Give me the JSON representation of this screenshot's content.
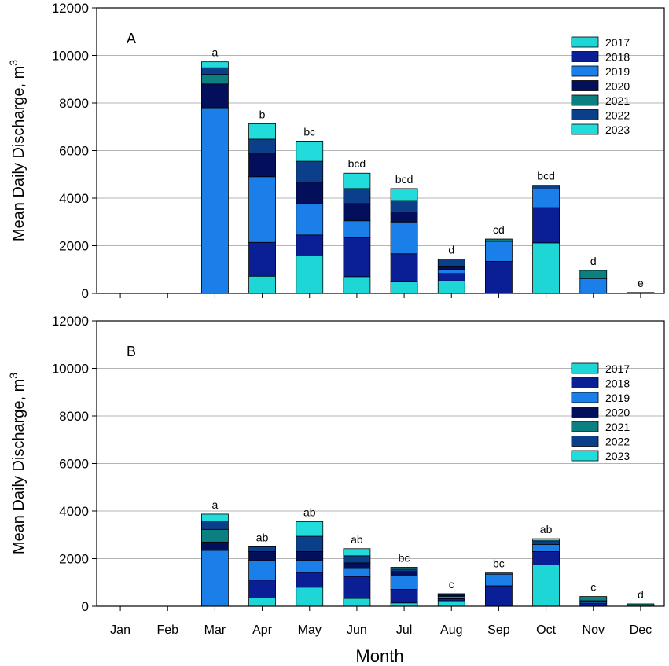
{
  "colors": {
    "2017": "#1ed6d6",
    "2018": "#0a1f96",
    "2019": "#1a7fe8",
    "2020": "#040f5c",
    "2021": "#0c7f80",
    "2022": "#0c3f8a",
    "2023": "#22dcdc",
    "grid": "#b4b4b4",
    "axis": "#000000"
  },
  "xlabel": "Month",
  "chart_data": [
    {
      "type": "bar",
      "stacked": true,
      "panel_label": "A",
      "title": "",
      "ylabel": "Mean Daily Discharge, m",
      "ylabel_sup": "3",
      "ylim": [
        0,
        12000
      ],
      "yticks": [
        "0",
        "2000",
        "4000",
        "6000",
        "8000",
        "10000",
        "12000"
      ],
      "grid": true,
      "legend_position": "top-right",
      "categories": [
        "Jan",
        "Feb",
        "Mar",
        "Apr",
        "May",
        "Jun",
        "Jul",
        "Aug",
        "Sep",
        "Oct",
        "Nov",
        "Dec"
      ],
      "series": [
        {
          "name": "2017",
          "values": [
            0,
            0,
            0,
            720,
            1570,
            700,
            480,
            520,
            0,
            2120,
            0,
            0
          ]
        },
        {
          "name": "2018",
          "values": [
            0,
            0,
            0,
            1420,
            880,
            1630,
            1180,
            310,
            1340,
            1480,
            0,
            0
          ]
        },
        {
          "name": "2019",
          "values": [
            0,
            0,
            7800,
            2760,
            1320,
            720,
            1340,
            180,
            840,
            780,
            620,
            0
          ]
        },
        {
          "name": "2020",
          "values": [
            0,
            0,
            1000,
            960,
            900,
            720,
            420,
            130,
            0,
            0,
            0,
            40
          ]
        },
        {
          "name": "2021",
          "values": [
            0,
            0,
            400,
            0,
            0,
            0,
            0,
            0,
            100,
            0,
            340,
            0
          ]
        },
        {
          "name": "2022",
          "values": [
            0,
            0,
            280,
            620,
            880,
            630,
            480,
            300,
            0,
            160,
            0,
            0
          ]
        },
        {
          "name": "2023",
          "values": [
            0,
            0,
            250,
            650,
            850,
            650,
            500,
            0,
            0,
            0,
            0,
            0
          ]
        }
      ],
      "annotations": [
        "",
        "",
        "a",
        "b",
        "bc",
        "bcd",
        "bcd",
        "d",
        "cd",
        "bcd",
        "d",
        "e"
      ],
      "legend": [
        "2017",
        "2018",
        "2019",
        "2020",
        "2021",
        "2022",
        "2023"
      ]
    },
    {
      "type": "bar",
      "stacked": true,
      "panel_label": "B",
      "title": "",
      "ylabel": "Mean Daily Discharge, m",
      "ylabel_sup": "3",
      "ylim": [
        0,
        12000
      ],
      "yticks": [
        "0",
        "2000",
        "4000",
        "6000",
        "8000",
        "10000",
        "12000"
      ],
      "grid": true,
      "legend_position": "top-right",
      "categories": [
        "Jan",
        "Feb",
        "Mar",
        "Apr",
        "May",
        "Jun",
        "Jul",
        "Aug",
        "Sep",
        "Oct",
        "Nov",
        "Dec"
      ],
      "series": [
        {
          "name": "2017",
          "values": [
            0,
            0,
            0,
            350,
            800,
            330,
            140,
            230,
            0,
            1740,
            0,
            0
          ]
        },
        {
          "name": "2018",
          "values": [
            0,
            0,
            0,
            750,
            620,
            920,
            570,
            90,
            860,
            560,
            130,
            0
          ]
        },
        {
          "name": "2019",
          "values": [
            0,
            0,
            2350,
            820,
            500,
            340,
            560,
            100,
            490,
            300,
            50,
            0
          ]
        },
        {
          "name": "2020",
          "values": [
            0,
            0,
            350,
            380,
            380,
            230,
            190,
            50,
            0,
            0,
            50,
            0
          ]
        },
        {
          "name": "2021",
          "values": [
            0,
            0,
            530,
            0,
            0,
            0,
            0,
            0,
            50,
            0,
            180,
            100
          ]
        },
        {
          "name": "2022",
          "values": [
            0,
            0,
            360,
            200,
            640,
            300,
            100,
            60,
            0,
            150,
            0,
            0
          ]
        },
        {
          "name": "2023",
          "values": [
            0,
            0,
            280,
            0,
            620,
            300,
            80,
            0,
            0,
            90,
            0,
            0
          ]
        }
      ],
      "annotations": [
        "",
        "",
        "a",
        "ab",
        "ab",
        "ab",
        "bc",
        "c",
        "bc",
        "ab",
        "c",
        "d"
      ],
      "legend": [
        "2017",
        "2018",
        "2019",
        "2020",
        "2021",
        "2022",
        "2023"
      ]
    }
  ]
}
